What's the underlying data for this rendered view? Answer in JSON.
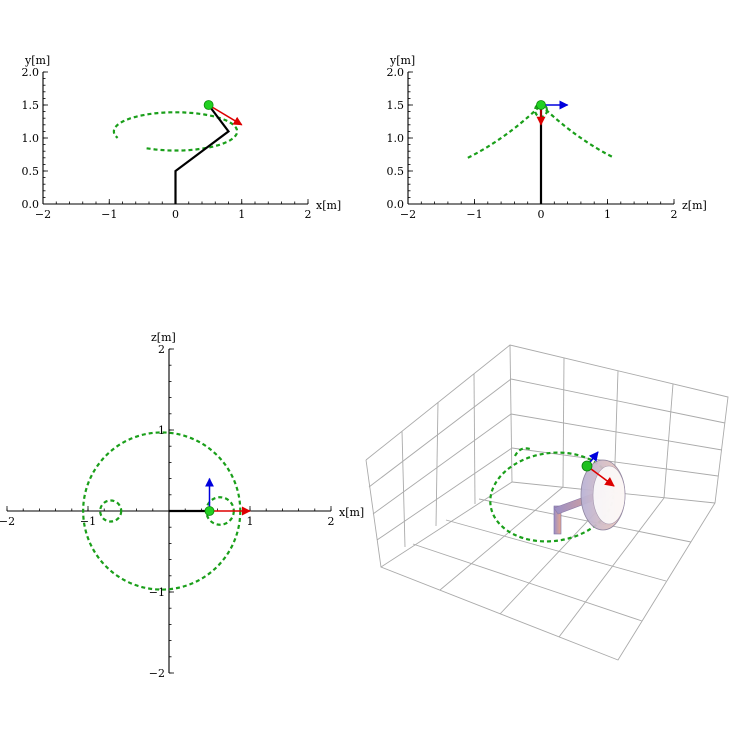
{
  "chart_data": [
    {
      "panel": "top-left",
      "type": "line",
      "xlabel": "x[m]",
      "ylabel": "y[m]",
      "xlim": [
        -2,
        2
      ],
      "ylim": [
        0,
        2
      ],
      "xticks": [
        -2,
        -1,
        0,
        1,
        2
      ],
      "yticks": [
        0.0,
        0.5,
        1.0,
        1.5,
        2.0
      ],
      "xtick_labels": [
        "−2",
        "−1",
        "0",
        "1",
        "2"
      ],
      "ytick_labels": [
        "0.0",
        "0.5",
        "1.0",
        "1.5",
        "2.0"
      ],
      "arm": {
        "x": [
          0,
          0,
          0.8,
          0.5
        ],
        "y": [
          0,
          0.5,
          1.1,
          1.5
        ]
      },
      "end_effector": {
        "x": 0.5,
        "y": 1.5
      },
      "arrows": [
        {
          "color": "#dd0000",
          "dx": 0.5,
          "dy": -0.3
        }
      ],
      "trajectory": {
        "cx": 0,
        "cy": 1.1,
        "rx": 0.93,
        "ry": 0.29,
        "start_deg": 242,
        "end_deg": 560
      }
    },
    {
      "panel": "top-right",
      "type": "line",
      "xlabel": "z[m]",
      "ylabel": "y[m]",
      "xlim": [
        -2,
        2
      ],
      "ylim": [
        0,
        2
      ],
      "xticks": [
        -2,
        -1,
        0,
        1,
        2
      ],
      "yticks": [
        0.0,
        0.5,
        1.0,
        1.5,
        2.0
      ],
      "xtick_labels": [
        "−2",
        "−1",
        "0",
        "1",
        "2"
      ],
      "ytick_labels": [
        "0.0",
        "0.5",
        "1.0",
        "1.5",
        "2.0"
      ],
      "arm": {
        "x": [
          0,
          0
        ],
        "y": [
          0,
          1.5
        ]
      },
      "end_effector": {
        "x": 0,
        "y": 1.5
      },
      "arrows": [
        {
          "color": "#0000dd",
          "dx": 0.4,
          "dy": 0
        },
        {
          "color": "#dd0000",
          "dx": 0,
          "dy": -0.3
        }
      ],
      "trajectory": {
        "curves": [
          {
            "x": [
              -1.1,
              -0.6,
              -0.2,
              0
            ],
            "y": [
              0.7,
              0.95,
              1.3,
              1.5
            ]
          },
          {
            "x": [
              0,
              0.2,
              0.6,
              1.1
            ],
            "y": [
              1.5,
              1.3,
              0.95,
              0.7
            ]
          }
        ],
        "loop": {
          "cx": 0,
          "cy": 1.42,
          "rx": 0.09,
          "ry": 0.1
        }
      }
    },
    {
      "panel": "bottom-left",
      "type": "line",
      "xlabel": "x[m]",
      "ylabel": "z[m]",
      "xlim": [
        -2,
        2
      ],
      "ylim": [
        -2,
        2
      ],
      "xticks": [
        -2,
        -1,
        1,
        2
      ],
      "yticks": [
        -2,
        -1,
        1,
        2
      ],
      "xtick_labels": [
        "−2",
        "−1",
        "1",
        "2"
      ],
      "ytick_labels": [
        "−2",
        "−1",
        "1",
        "2"
      ],
      "arm": {
        "x": [
          0,
          0.5
        ],
        "y": [
          0,
          0
        ]
      },
      "end_effector": {
        "x": 0.5,
        "y": 0
      },
      "arrows": [
        {
          "color": "#0000dd",
          "dx": 0,
          "dy": 0.4
        },
        {
          "color": "#dd0000",
          "dx": 0.5,
          "dy": 0
        }
      ],
      "trajectory": {
        "big_circle": {
          "cx": -0.09,
          "cy": 0,
          "r": 0.97
        },
        "small_loops": [
          {
            "cx": -0.72,
            "cy": 0,
            "r": 0.13
          },
          {
            "cx": 0.63,
            "cy": 0,
            "r": 0.17
          }
        ]
      }
    }
  ]
}
